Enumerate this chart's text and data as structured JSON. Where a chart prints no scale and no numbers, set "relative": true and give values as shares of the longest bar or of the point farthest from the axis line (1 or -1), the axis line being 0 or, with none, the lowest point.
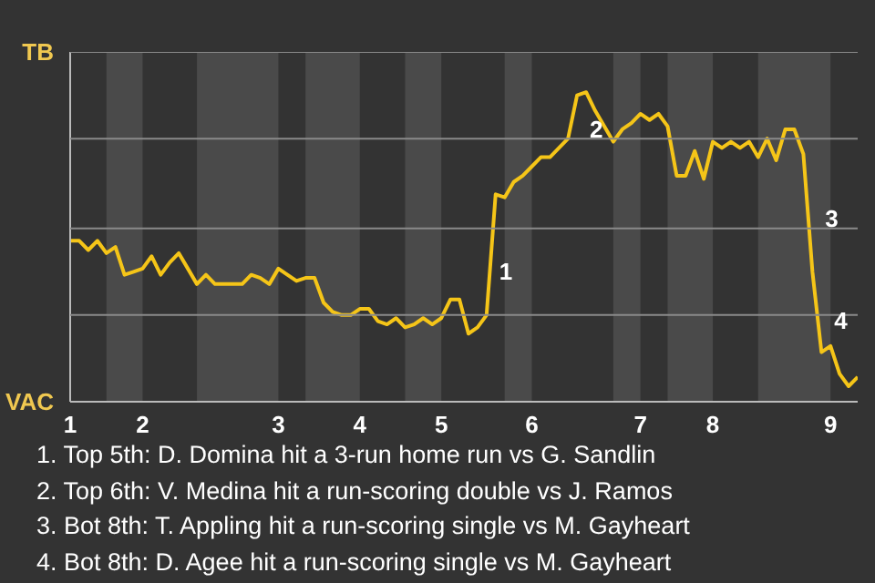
{
  "chart_data": {
    "type": "line",
    "relative": true,
    "categories": [
      "1",
      null,
      null,
      null,
      null,
      null,
      null,
      null,
      "2",
      null,
      null,
      null,
      null,
      null,
      null,
      null,
      null,
      null,
      null,
      null,
      null,
      null,
      null,
      "3",
      null,
      null,
      null,
      null,
      null,
      null,
      null,
      null,
      "4",
      null,
      null,
      null,
      null,
      null,
      null,
      null,
      null,
      "5",
      null,
      null,
      null,
      null,
      null,
      null,
      null,
      null,
      null,
      "6",
      null,
      null,
      null,
      null,
      null,
      null,
      null,
      null,
      null,
      null,
      null,
      "7",
      null,
      null,
      null,
      null,
      null,
      null,
      null,
      "8",
      null,
      null,
      null,
      null,
      null,
      null,
      null,
      null,
      null,
      null,
      null,
      null,
      "9",
      null,
      null,
      null
    ],
    "series": [
      {
        "color": "#f5c518",
        "values": [
          0.52,
          0.52,
          0.49,
          0.52,
          0.48,
          0.5,
          0.41,
          0.42,
          0.43,
          0.47,
          0.41,
          0.45,
          0.48,
          0.43,
          0.38,
          0.41,
          0.38,
          0.38,
          0.38,
          0.38,
          0.41,
          0.4,
          0.38,
          0.43,
          0.41,
          0.39,
          0.4,
          0.4,
          0.32,
          0.29,
          0.28,
          0.28,
          0.3,
          0.3,
          0.26,
          0.25,
          0.27,
          0.24,
          0.25,
          0.27,
          0.25,
          0.27,
          0.33,
          0.33,
          0.22,
          0.24,
          0.28,
          0.67,
          0.66,
          0.71,
          0.73,
          0.76,
          0.79,
          0.79,
          0.82,
          0.85,
          0.99,
          1,
          0.94,
          0.89,
          0.84,
          0.88,
          0.9,
          0.93,
          0.91,
          0.93,
          0.89,
          0.73,
          0.73,
          0.81,
          0.72,
          0.84,
          0.82,
          0.84,
          0.82,
          0.84,
          0.79,
          0.85,
          0.78,
          0.88,
          0.88,
          0.8,
          0.42,
          0.16,
          0.18,
          0.09,
          0.05,
          0.08
        ]
      }
    ],
    "marker": "none",
    "line_style": "solid",
    "ref_lines": [
      {
        "axis": "y",
        "value": 0.28,
        "color": "#8a8a8a"
      },
      {
        "axis": "y",
        "value": 0.56,
        "color": "#8a8a8a"
      },
      {
        "axis": "y",
        "value": 0.85,
        "color": "#8a8a8a"
      },
      {
        "axis": "y",
        "value": 1.13,
        "color": "#8a8a8a"
      }
    ],
    "annotations": [
      "TB",
      "VAC",
      "1",
      "2",
      "3",
      "4",
      "1. Top 5th: D. Domina hit a 3-run home run vs G. Sandlin",
      "2. Top 6th: V. Medina hit a run-scoring double vs J. Ramos",
      "3. Bot 8th: T. Appling hit a run-scoring single vs M. Gayheart",
      "4. Bot 8th: D. Agee hit a run-scoring single vs M. Gayheart"
    ]
  }
}
